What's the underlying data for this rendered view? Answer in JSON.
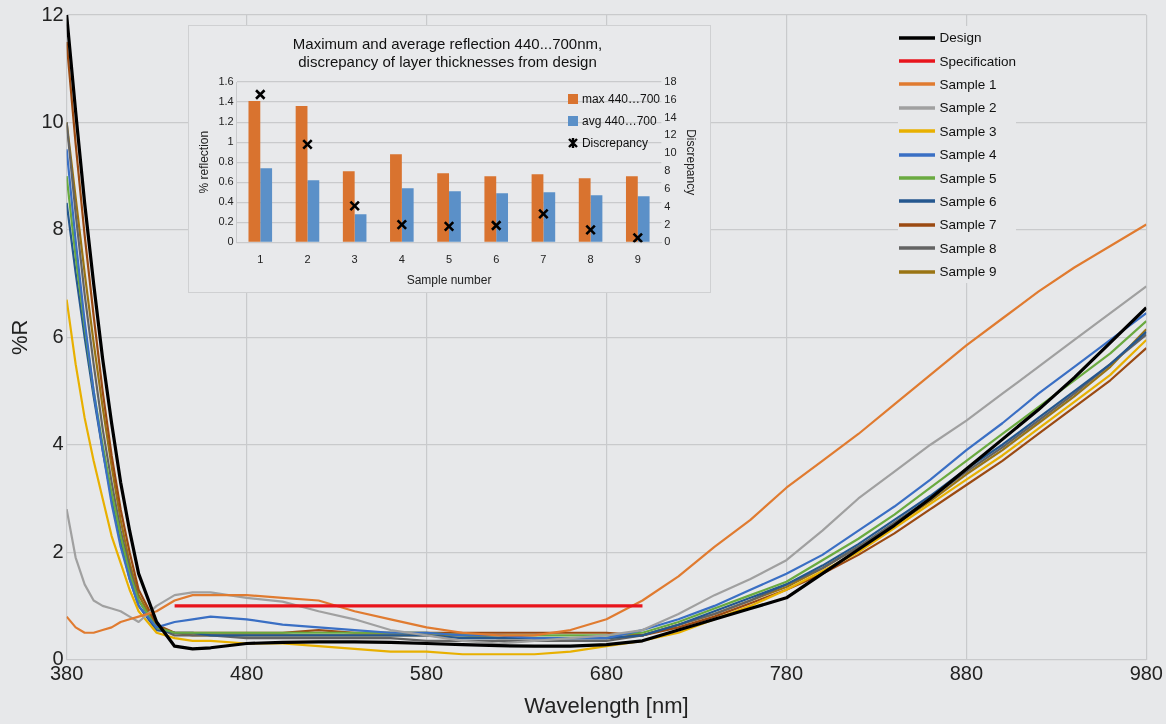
{
  "chart_data": [
    {
      "type": "line",
      "xlabel": "Wavelength [nm]",
      "ylabel": "%R",
      "xlim": [
        380,
        980
      ],
      "xticks": [
        380,
        480,
        580,
        680,
        780,
        880,
        980
      ],
      "ylim": [
        0,
        12
      ],
      "yticks": [
        0,
        2,
        4,
        6,
        8,
        10,
        12
      ],
      "grid": true,
      "legend": "top right",
      "marker": "none",
      "x": [
        380,
        385,
        390,
        395,
        400,
        405,
        410,
        415,
        420,
        430,
        440,
        450,
        460,
        480,
        500,
        520,
        540,
        560,
        580,
        600,
        620,
        640,
        660,
        680,
        700,
        720,
        740,
        760,
        780,
        800,
        820,
        840,
        860,
        880,
        900,
        920,
        940,
        960,
        980
      ],
      "series": [
        {
          "name": "Design",
          "color": "#000000",
          "values": [
            12,
            10.2,
            8.5,
            7.0,
            5.6,
            4.4,
            3.3,
            2.4,
            1.6,
            0.7,
            0.25,
            0.2,
            0.22,
            0.3,
            0.32,
            0.33,
            0.33,
            0.32,
            0.3,
            0.28,
            0.26,
            0.25,
            0.25,
            0.28,
            0.35,
            0.55,
            0.75,
            0.95,
            1.15,
            1.6,
            2.05,
            2.5,
            3.0,
            3.55,
            4.1,
            4.65,
            5.25,
            5.9,
            6.55
          ]
        },
        {
          "name": "Specification",
          "color": "#e8141c",
          "x": [
            440,
            700
          ],
          "values": [
            1,
            1
          ]
        },
        {
          "name": "Sample 1",
          "color": "#e07b30",
          "values": [
            0.8,
            0.6,
            0.5,
            0.5,
            0.55,
            0.6,
            0.7,
            0.75,
            0.8,
            0.9,
            1.1,
            1.2,
            1.2,
            1.2,
            1.15,
            1.1,
            0.9,
            0.75,
            0.6,
            0.5,
            0.45,
            0.45,
            0.55,
            0.75,
            1.1,
            1.55,
            2.1,
            2.6,
            3.2,
            3.7,
            4.2,
            4.75,
            5.3,
            5.85,
            6.35,
            6.85,
            7.3,
            7.7,
            8.1
          ]
        },
        {
          "name": "Sample 2",
          "color": "#a0a0a0",
          "values": [
            2.8,
            1.9,
            1.4,
            1.1,
            1.0,
            0.95,
            0.9,
            0.8,
            0.7,
            1.0,
            1.2,
            1.25,
            1.25,
            1.15,
            1.08,
            0.9,
            0.75,
            0.55,
            0.45,
            0.35,
            0.3,
            0.35,
            0.4,
            0.45,
            0.55,
            0.85,
            1.2,
            1.5,
            1.85,
            2.4,
            3.0,
            3.5,
            4.0,
            4.45,
            4.95,
            5.45,
            5.95,
            6.45,
            6.95
          ]
        },
        {
          "name": "Sample 3",
          "color": "#e8b000",
          "values": [
            6.7,
            5.5,
            4.5,
            3.7,
            3.0,
            2.3,
            1.8,
            1.3,
            0.9,
            0.5,
            0.4,
            0.35,
            0.35,
            0.3,
            0.3,
            0.25,
            0.2,
            0.15,
            0.15,
            0.1,
            0.1,
            0.1,
            0.15,
            0.25,
            0.35,
            0.5,
            0.75,
            1.0,
            1.3,
            1.65,
            2.0,
            2.45,
            2.9,
            3.35,
            3.8,
            4.3,
            4.8,
            5.3,
            5.95
          ]
        },
        {
          "name": "Sample 4",
          "color": "#3a6fc4",
          "values": [
            9.5,
            7.8,
            6.3,
            5.0,
            3.9,
            2.9,
            2.1,
            1.5,
            1.0,
            0.6,
            0.7,
            0.75,
            0.8,
            0.75,
            0.65,
            0.6,
            0.55,
            0.5,
            0.5,
            0.45,
            0.45,
            0.4,
            0.4,
            0.4,
            0.55,
            0.75,
            1.0,
            1.3,
            1.6,
            1.95,
            2.4,
            2.85,
            3.35,
            3.9,
            4.4,
            4.95,
            5.45,
            5.95,
            6.45
          ]
        },
        {
          "name": "Sample 5",
          "color": "#6aaa40",
          "values": [
            9.0,
            7.5,
            6.2,
            5.0,
            4.0,
            3.1,
            2.3,
            1.6,
            1.1,
            0.6,
            0.5,
            0.5,
            0.5,
            0.5,
            0.5,
            0.5,
            0.5,
            0.5,
            0.5,
            0.45,
            0.45,
            0.45,
            0.45,
            0.45,
            0.5,
            0.7,
            0.95,
            1.2,
            1.45,
            1.85,
            2.25,
            2.7,
            3.2,
            3.7,
            4.2,
            4.7,
            5.2,
            5.7,
            6.3
          ]
        },
        {
          "name": "Sample 6",
          "color": "#24578f",
          "values": [
            8.5,
            7.2,
            6.0,
            4.9,
            3.9,
            3.0,
            2.2,
            1.5,
            1.0,
            0.55,
            0.5,
            0.5,
            0.45,
            0.45,
            0.45,
            0.45,
            0.45,
            0.45,
            0.45,
            0.4,
            0.4,
            0.4,
            0.4,
            0.4,
            0.45,
            0.65,
            0.9,
            1.15,
            1.4,
            1.75,
            2.15,
            2.6,
            3.05,
            3.55,
            4.0,
            4.5,
            5.0,
            5.5,
            6.1
          ]
        },
        {
          "name": "Sample 7",
          "color": "#9b4a12",
          "values": [
            11.5,
            9.6,
            7.9,
            6.4,
            5.0,
            3.8,
            2.8,
            2.0,
            1.3,
            0.65,
            0.5,
            0.5,
            0.5,
            0.5,
            0.5,
            0.55,
            0.5,
            0.5,
            0.5,
            0.5,
            0.5,
            0.5,
            0.5,
            0.5,
            0.45,
            0.6,
            0.8,
            1.05,
            1.3,
            1.6,
            1.95,
            2.35,
            2.8,
            3.25,
            3.7,
            4.2,
            4.7,
            5.2,
            5.8
          ]
        },
        {
          "name": "Sample 8",
          "color": "#636363",
          "values": [
            10.0,
            8.3,
            6.8,
            5.5,
            4.3,
            3.3,
            2.4,
            1.7,
            1.1,
            0.6,
            0.45,
            0.45,
            0.45,
            0.4,
            0.4,
            0.4,
            0.4,
            0.4,
            0.35,
            0.35,
            0.35,
            0.35,
            0.35,
            0.35,
            0.45,
            0.65,
            0.85,
            1.1,
            1.4,
            1.7,
            2.1,
            2.55,
            3.0,
            3.5,
            3.95,
            4.45,
            4.95,
            5.5,
            6.05
          ]
        },
        {
          "name": "Sample 9",
          "color": "#9a7413",
          "values": [
            10.0,
            8.6,
            7.2,
            5.9,
            4.7,
            3.6,
            2.6,
            1.8,
            1.2,
            0.6,
            0.5,
            0.45,
            0.45,
            0.45,
            0.45,
            0.45,
            0.45,
            0.45,
            0.45,
            0.45,
            0.4,
            0.4,
            0.4,
            0.4,
            0.45,
            0.65,
            0.85,
            1.1,
            1.35,
            1.7,
            2.1,
            2.5,
            2.95,
            3.45,
            3.9,
            4.4,
            4.9,
            5.45,
            6.15
          ]
        }
      ]
    },
    {
      "type": "bar",
      "title": "Maximum and average reflection 440...700nm,\ndiscrepancy of layer thicknesses from design",
      "xlabel": "Sample number",
      "ylabel": "% reflection",
      "y2label": "Discrepancy",
      "categories": [
        "1",
        "2",
        "3",
        "4",
        "5",
        "6",
        "7",
        "8",
        "9"
      ],
      "ylim": [
        0,
        1.6
      ],
      "yticks": [
        0,
        0.2,
        0.4,
        0.6,
        0.8,
        1,
        1.2,
        1.4,
        1.6
      ],
      "y2lim": [
        0,
        18
      ],
      "y2ticks": [
        0,
        2,
        4,
        6,
        8,
        10,
        12,
        14,
        16,
        18
      ],
      "grid": "y",
      "legend": "top right",
      "series": [
        {
          "name": "max 440…700",
          "color": "#d9732f",
          "values": [
            1.41,
            1.36,
            0.71,
            0.88,
            0.69,
            0.66,
            0.68,
            0.64,
            0.66
          ]
        },
        {
          "name": "avg 440…700",
          "color": "#5b90c8",
          "values": [
            0.74,
            0.62,
            0.28,
            0.54,
            0.51,
            0.49,
            0.5,
            0.47,
            0.46
          ]
        },
        {
          "name": "Discrepancy",
          "type": "scatter",
          "axis": "y2",
          "marker": "cross",
          "color": "#000000",
          "values": [
            16.6,
            11.0,
            4.1,
            2.0,
            1.8,
            1.9,
            3.2,
            1.4,
            0.5
          ]
        }
      ]
    }
  ]
}
